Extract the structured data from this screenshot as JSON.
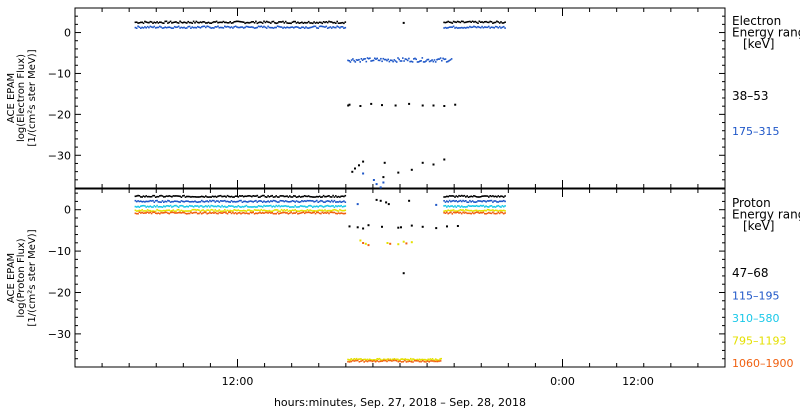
{
  "chart_data": [
    {
      "type": "scatter",
      "panel": "electron",
      "ylabel_lines": [
        "ACE EPAM",
        "log(Electron Flux)",
        "[1/(cm²s ster MeV)]"
      ],
      "ylim": [
        -38,
        6
      ],
      "yticks": [
        0,
        -10,
        -20,
        -30
      ],
      "legend": {
        "title_lines": [
          "Electron",
          "Energy  ranges",
          "[keV]"
        ],
        "entries": [
          {
            "label": "38–53",
            "color": "#000000"
          },
          {
            "label": "175–315",
            "color": "#1f57c8"
          }
        ]
      },
      "series": [
        {
          "name": "38–53",
          "color": "#000000",
          "segments": [
            {
              "x0": 8.2,
              "x1": 16.0,
              "y": 2.7,
              "step": 0.05,
              "jitter": 0.25
            },
            {
              "x0": 19.6,
              "x1": 21.9,
              "y": 2.7,
              "step": 0.05,
              "jitter": 0.25
            }
          ],
          "points": [
            [
              16.05,
              -17.6
            ],
            [
              16.1,
              -17.4
            ],
            [
              16.5,
              -17.7
            ],
            [
              16.9,
              -17.2
            ],
            [
              17.3,
              -17.5
            ],
            [
              17.8,
              -17.6
            ],
            [
              18.3,
              -17.2
            ],
            [
              18.8,
              -17.6
            ],
            [
              19.2,
              -17.6
            ],
            [
              19.6,
              -17.7
            ],
            [
              20.0,
              -17.4
            ],
            [
              16.3,
              -33.0
            ],
            [
              16.6,
              -31.3
            ],
            [
              17.4,
              -31.6
            ],
            [
              17.9,
              -34.0
            ],
            [
              18.4,
              -33.3
            ],
            [
              18.8,
              -31.6
            ],
            [
              19.2,
              -32.0
            ],
            [
              19.6,
              -30.8
            ],
            [
              16.2,
              -33.8
            ],
            [
              16.45,
              -32.2
            ],
            [
              18.1,
              2.6
            ],
            [
              17.35,
              -35.1
            ]
          ]
        },
        {
          "name": "175–315",
          "color": "#1f57c8",
          "segments": [
            {
              "x0": 8.2,
              "x1": 16.0,
              "y": 1.5,
              "step": 0.05,
              "jitter": 0.25
            },
            {
              "x0": 19.6,
              "x1": 21.9,
              "y": 1.5,
              "step": 0.05,
              "jitter": 0.25
            },
            {
              "x0": 16.05,
              "x1": 19.9,
              "y": -6.5,
              "step": 0.045,
              "jitter": 0.5
            }
          ],
          "points": [
            [
              17.0,
              -35.8
            ],
            [
              17.1,
              -36.8
            ],
            [
              17.25,
              -37.6
            ],
            [
              17.35,
              -36.4
            ],
            [
              16.6,
              -34.2
            ]
          ]
        }
      ]
    },
    {
      "type": "scatter",
      "panel": "proton",
      "ylabel_lines": [
        "ACE EPAM",
        "log(Proton Flux)",
        "[1/(cm²s ster MeV)]"
      ],
      "ylim": [
        -38,
        5
      ],
      "yticks": [
        0,
        -10,
        -20,
        -30
      ],
      "xlim": [
        6.0,
        30.0
      ],
      "xticks": [
        {
          "x": 12,
          "label": "12:00"
        },
        {
          "x": 24,
          "label": "0:00"
        },
        {
          "x": 36,
          "label": "12:00"
        }
      ],
      "xlabel": "hours:minutes, Sep. 27, 2018 – Sep. 28, 2018",
      "legend": {
        "title_lines": [
          "Proton",
          "Energy  ranges",
          "[keV]"
        ],
        "entries": [
          {
            "label": "47–68",
            "color": "#000000"
          },
          {
            "label": "115–195",
            "color": "#1f57c8"
          },
          {
            "label": "310–580",
            "color": "#19c8e8"
          },
          {
            "label": "795–1193",
            "color": "#e4e000"
          },
          {
            "label": "1060–1900",
            "color": "#f06010"
          }
        ]
      },
      "series": [
        {
          "name": "47–68",
          "color": "#000000",
          "segments": [
            {
              "x0": 8.2,
              "x1": 16.0,
              "y": 3.4,
              "step": 0.05,
              "jitter": 0.2
            },
            {
              "x0": 19.6,
              "x1": 21.9,
              "y": 3.4,
              "step": 0.05,
              "jitter": 0.2
            }
          ],
          "points": [
            [
              16.1,
              -3.8
            ],
            [
              16.4,
              -4.0
            ],
            [
              16.8,
              -3.5
            ],
            [
              17.3,
              -3.9
            ],
            [
              17.9,
              -4.1
            ],
            [
              18.4,
              -3.6
            ],
            [
              18.8,
              -3.9
            ],
            [
              19.3,
              -4.2
            ],
            [
              19.7,
              -3.8
            ],
            [
              20.1,
              -3.7
            ],
            [
              16.6,
              -4.3
            ],
            [
              18.0,
              -4.0
            ],
            [
              17.1,
              2.6
            ],
            [
              17.25,
              2.4
            ],
            [
              17.45,
              2.0
            ],
            [
              17.55,
              1.6
            ],
            [
              18.3,
              2.4
            ],
            [
              18.1,
              -15.1
            ]
          ]
        },
        {
          "name": "115–195",
          "color": "#1f57c8",
          "segments": [
            {
              "x0": 8.2,
              "x1": 16.0,
              "y": 2.2,
              "step": 0.05,
              "jitter": 0.2
            },
            {
              "x0": 19.6,
              "x1": 21.9,
              "y": 2.2,
              "step": 0.05,
              "jitter": 0.2
            }
          ],
          "points": [
            [
              19.3,
              1.4
            ],
            [
              16.4,
              1.6
            ]
          ]
        },
        {
          "name": "310–580",
          "color": "#19c8e8",
          "segments": [
            {
              "x0": 8.2,
              "x1": 16.0,
              "y": 1.0,
              "step": 0.05,
              "jitter": 0.2
            },
            {
              "x0": 19.6,
              "x1": 21.9,
              "y": 1.0,
              "step": 0.05,
              "jitter": 0.2
            }
          ],
          "points": []
        },
        {
          "name": "795–1193",
          "color": "#e4e000",
          "segments": [
            {
              "x0": 8.2,
              "x1": 16.0,
              "y": 0.0,
              "step": 0.05,
              "jitter": 0.2
            },
            {
              "x0": 19.6,
              "x1": 21.9,
              "y": 0.0,
              "step": 0.05,
              "jitter": 0.2
            },
            {
              "x0": 16.05,
              "x1": 19.5,
              "y": -36.0,
              "step": 0.04,
              "jitter": 0.2
            }
          ],
          "points": [
            [
              16.7,
              -8.0
            ],
            [
              17.5,
              -7.8
            ],
            [
              17.9,
              -8.1
            ],
            [
              18.1,
              -7.5
            ],
            [
              18.4,
              -7.6
            ],
            [
              16.5,
              -7.2
            ]
          ]
        },
        {
          "name": "1060–1900",
          "color": "#f06010",
          "segments": [
            {
              "x0": 8.2,
              "x1": 16.0,
              "y": -0.6,
              "step": 0.05,
              "jitter": 0.2
            },
            {
              "x0": 19.6,
              "x1": 21.9,
              "y": -0.6,
              "step": 0.05,
              "jitter": 0.2
            },
            {
              "x0": 16.05,
              "x1": 19.5,
              "y": -36.4,
              "step": 0.06,
              "jitter": 0.2
            }
          ],
          "points": [
            [
              16.8,
              -8.3
            ],
            [
              17.6,
              -8.0
            ],
            [
              16.6,
              -7.8
            ],
            [
              18.2,
              -7.9
            ]
          ]
        }
      ]
    }
  ]
}
